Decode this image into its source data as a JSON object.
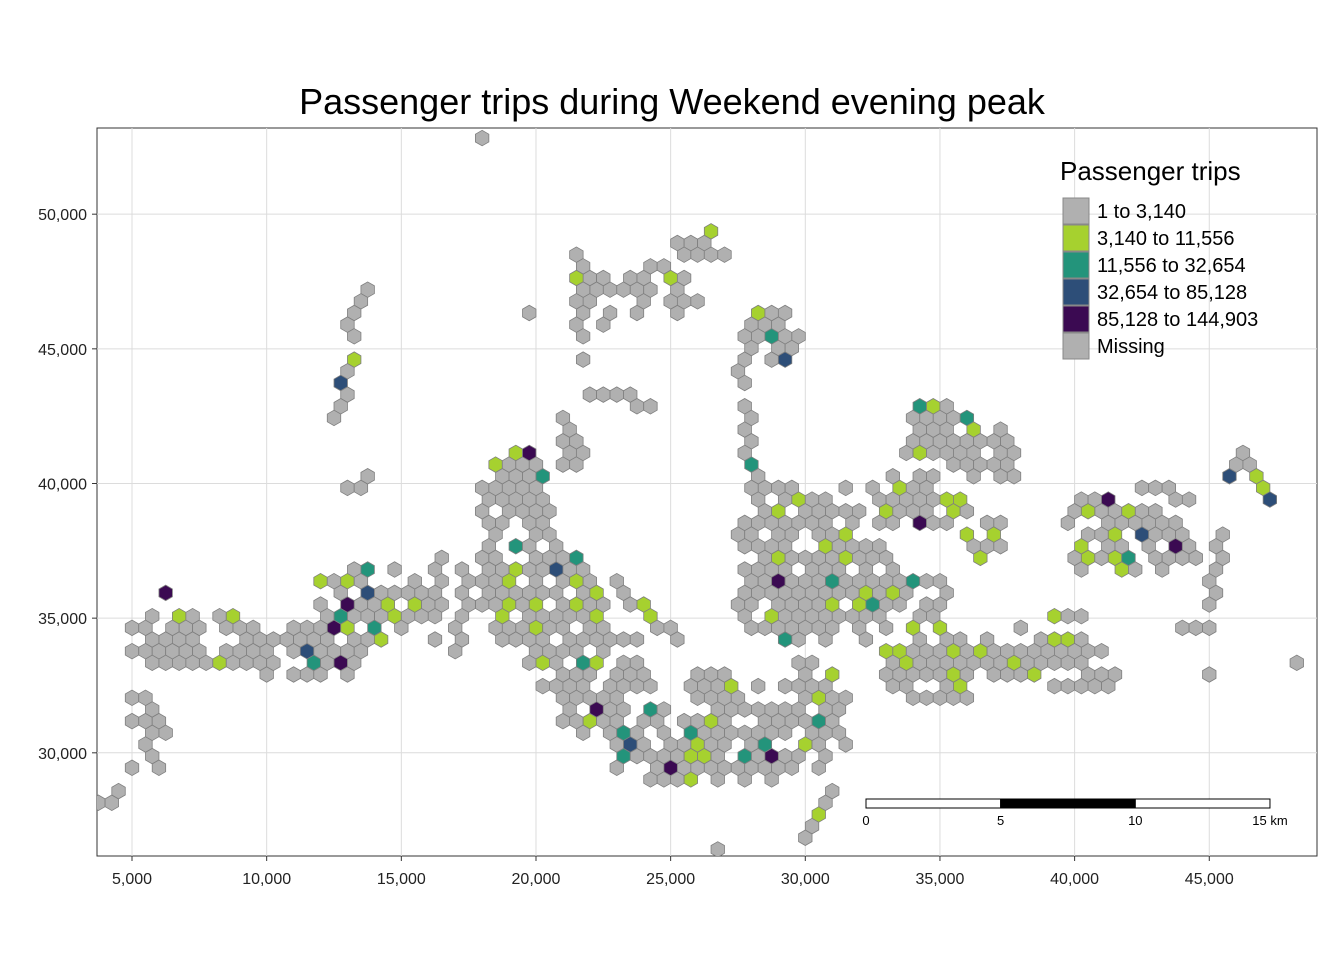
{
  "chart_data": {
    "type": "map",
    "title": "Passenger trips during Weekend evening peak",
    "x_ticks": [
      "5,000",
      "10,000",
      "15,000",
      "20,000",
      "25,000",
      "30,000",
      "35,000",
      "40,000",
      "45,000"
    ],
    "x_tick_values": [
      5000,
      10000,
      15000,
      20000,
      25000,
      30000,
      35000,
      40000,
      45000
    ],
    "y_ticks": [
      "30,000",
      "35,000",
      "40,000",
      "45,000",
      "50,000"
    ],
    "y_tick_values": [
      30000,
      35000,
      40000,
      45000,
      50000
    ],
    "xlim": [
      3700,
      49000
    ],
    "ylim": [
      26200,
      53200
    ],
    "grid": true,
    "legend": {
      "title": "Passenger trips",
      "placement": "top-right",
      "entries": [
        {
          "label": "1 to 3,140",
          "color": "#b0b0b0"
        },
        {
          "label": "3,140 to 11,556",
          "color": "#a6d12f"
        },
        {
          "label": "11,556 to 32,654",
          "color": "#23947b"
        },
        {
          "label": "32,654 to 85,128",
          "color": "#2d4e78"
        },
        {
          "label": "85,128 to 144,903",
          "color": "#3b0a52"
        },
        {
          "label": "Missing",
          "color": "#b0b0b0"
        }
      ]
    },
    "scale_bar": {
      "labels": [
        "0",
        "5",
        "10",
        "15 km"
      ],
      "km_values": [
        0,
        5,
        10,
        15
      ]
    },
    "hex_cell_spacing_m": 500
  }
}
